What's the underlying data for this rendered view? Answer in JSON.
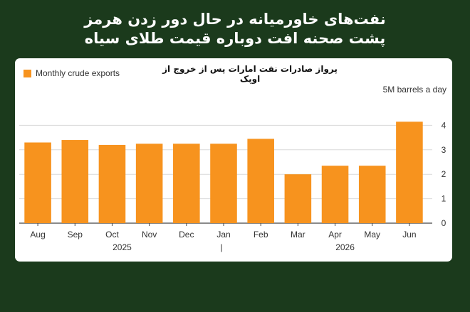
{
  "headline": {
    "line1": "نفت‌های خاورمیانه در حال دور زدن هرمز",
    "line2": "پشت صحنه افت دوباره قیمت طلای سیاه"
  },
  "colors": {
    "background": "#1b3a1c",
    "card": "#ffffff",
    "bar": "#f7931e",
    "grid": "#d9d9d9",
    "axis": "#444444"
  },
  "chart_data": {
    "type": "bar",
    "title": "پرواز صادرات نفت امارات پس از خروج از اوپک",
    "legend": [
      "Monthly crude exports"
    ],
    "unit_label": "5M barrels a day",
    "categories": [
      "Aug",
      "Sep",
      "Oct",
      "Nov",
      "Dec",
      "Jan",
      "Feb",
      "Mar",
      "Apr",
      "May",
      "Jun"
    ],
    "values": [
      3.3,
      3.4,
      3.2,
      3.25,
      3.25,
      3.25,
      3.45,
      2.0,
      2.35,
      2.35,
      4.15
    ],
    "year_labels": [
      {
        "label": "2025",
        "anchor": "Oct"
      },
      {
        "label": "2026",
        "anchor": "Apr"
      }
    ],
    "year_divider_after": "Dec",
    "year_divider_text": "|",
    "ylim": [
      0,
      5
    ],
    "yticks": [
      0,
      1,
      2,
      3,
      4
    ],
    "y_axis_position": "right",
    "grid": true
  }
}
